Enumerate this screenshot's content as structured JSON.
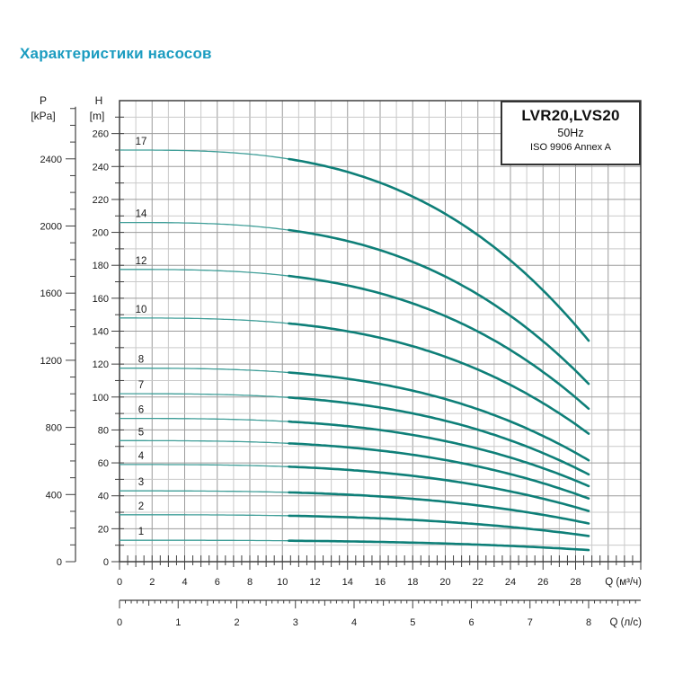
{
  "page": {
    "title": "Характеристики насосов",
    "title_color": "#1b9cc0"
  },
  "info_box": {
    "model": "LVR20,LVS20",
    "frequency": "50Hz",
    "standard": "ISO 9906 Annex A"
  },
  "chart_data": {
    "type": "line",
    "title": "LVR20,LVS20 50Hz ISO 9906 Annex A",
    "description": "Pump performance curves H(Q) for multistage pumps LVR20/LVS20, one curve per number of stages",
    "x_axis_m3h": {
      "label": "Q (м³/ч)",
      "min": 0,
      "max": 32,
      "labeled_ticks": [
        0,
        2,
        4,
        6,
        8,
        10,
        12,
        14,
        16,
        18,
        20,
        22,
        24,
        26,
        28
      ],
      "minor_step": 0.5,
      "grid_step_minor": 1,
      "grid_step_major": 2
    },
    "x_axis_ls": {
      "label": "Q (л/с)",
      "min": 0,
      "max": 8.8,
      "labeled_ticks": [
        0,
        1,
        2,
        3,
        4,
        5,
        6,
        7,
        8
      ],
      "minor_step": 0.1,
      "m3h_per_ls": 3.6
    },
    "y_axis_h": {
      "label": "H",
      "unit": "[m]",
      "min": 0,
      "max": 280,
      "labeled_ticks": [
        0,
        20,
        40,
        60,
        80,
        100,
        120,
        140,
        160,
        180,
        200,
        220,
        240,
        260
      ],
      "minor_step": 10
    },
    "y_axis_p": {
      "label": "P",
      "unit": "[kPa]",
      "min": 0,
      "max": 2700,
      "labeled_ticks": [
        0,
        400,
        800,
        1200,
        1600,
        2000,
        2400
      ],
      "minor_step": 100,
      "kpa_per_m": 9.81
    },
    "curve_model": {
      "exponent": 3,
      "q_end_m3h": 28.9,
      "q_end_ls": 8.0,
      "thick_from_q_m3h": 10.4
    },
    "q_sample_points_m3h": [
      0,
      4,
      8,
      12,
      16,
      20,
      24,
      28.9
    ],
    "series": [
      {
        "name": "17",
        "h_values": [
          250.0,
          249.7,
          247.5,
          241.6,
          230.1,
          211.2,
          183.0,
          133.0
        ]
      },
      {
        "name": "14",
        "h_values": [
          206.0,
          205.7,
          203.9,
          198.9,
          189.2,
          173.2,
          149.3,
          107.0
        ]
      },
      {
        "name": "12",
        "h_values": [
          177.5,
          177.3,
          175.7,
          171.4,
          163.0,
          149.2,
          128.5,
          92.0
        ]
      },
      {
        "name": "10",
        "h_values": [
          148.0,
          147.8,
          146.5,
          142.9,
          136.0,
          124.5,
          107.3,
          77.0
        ]
      },
      {
        "name": "8",
        "h_values": [
          117.5,
          117.4,
          116.3,
          113.5,
          107.9,
          98.8,
          85.1,
          61.0
        ]
      },
      {
        "name": "7",
        "h_values": [
          102.0,
          101.9,
          100.9,
          98.5,
          93.6,
          85.6,
          73.6,
          52.5
        ]
      },
      {
        "name": "6",
        "h_values": [
          87.0,
          86.9,
          86.1,
          84.0,
          80.0,
          73.2,
          63.2,
          45.5
        ]
      },
      {
        "name": "5",
        "h_values": [
          73.5,
          73.4,
          72.7,
          71.0,
          67.5,
          61.7,
          53.2,
          38.0
        ]
      },
      {
        "name": "4",
        "h_values": [
          59.0,
          58.9,
          58.4,
          57.0,
          54.2,
          49.6,
          42.7,
          30.5
        ]
      },
      {
        "name": "3",
        "h_values": [
          43.0,
          42.9,
          42.6,
          41.6,
          39.6,
          36.4,
          31.5,
          23.0
        ]
      },
      {
        "name": "2",
        "h_values": [
          28.5,
          28.5,
          28.2,
          27.6,
          26.3,
          24.2,
          21.1,
          15.5
        ]
      },
      {
        "name": "1",
        "h_values": [
          13.0,
          13.0,
          12.9,
          12.6,
          12.0,
          11.0,
          9.6,
          7.0
        ]
      }
    ],
    "colors": {
      "curve_thick": "#0e7f78",
      "curve_thin": "#3f9e98",
      "grid_minor": "#c9c9c9",
      "grid_major": "#9b9b9b",
      "frame": "#3f3f3f",
      "axis_text": "#1a1a1a",
      "title": "#1b9cc0"
    },
    "legend_position": "none",
    "grid": true
  }
}
